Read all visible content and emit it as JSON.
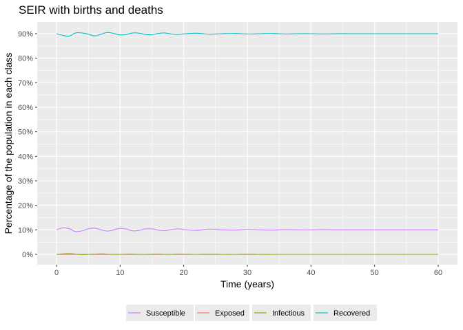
{
  "chart_data": {
    "type": "line",
    "title": "SEIR with births and deaths",
    "xlabel": "Time (years)",
    "ylabel": "Percentage of the population in each class",
    "xlim": [
      0,
      60
    ],
    "ylim": [
      0,
      0.9
    ],
    "x_ticks": [
      0,
      10,
      20,
      30,
      40,
      50,
      60
    ],
    "x_tick_labels": [
      "0",
      "10",
      "20",
      "30",
      "40",
      "50",
      "60"
    ],
    "y_ticks": [
      0,
      0.1,
      0.2,
      0.3,
      0.4,
      0.5,
      0.6,
      0.7,
      0.8,
      0.9
    ],
    "y_tick_labels": [
      "0%",
      "10%",
      "20%",
      "30%",
      "40%",
      "50%",
      "60%",
      "70%",
      "80%",
      "90%"
    ],
    "grid": true,
    "legend_position": "bottom",
    "x": [
      0,
      1,
      2,
      3,
      4,
      5,
      6,
      7,
      8,
      9,
      10,
      11,
      12,
      13,
      14,
      15,
      16,
      17,
      18,
      19,
      20,
      22,
      24,
      26,
      28,
      30,
      32,
      34,
      36,
      38,
      40,
      42,
      44,
      46,
      48,
      50,
      52,
      54,
      56,
      58,
      60
    ],
    "series": [
      {
        "name": "Susceptible",
        "color": "#C77CFF",
        "values": [
          0.1,
          0.108,
          0.105,
          0.093,
          0.096,
          0.104,
          0.107,
          0.1,
          0.095,
          0.1,
          0.106,
          0.103,
          0.096,
          0.098,
          0.104,
          0.104,
          0.099,
          0.097,
          0.101,
          0.104,
          0.101,
          0.098,
          0.103,
          0.1,
          0.099,
          0.102,
          0.1,
          0.099,
          0.101,
          0.1,
          0.1,
          0.101,
          0.1,
          0.1,
          0.1,
          0.1,
          0.1,
          0.1,
          0.1,
          0.1,
          0.1
        ]
      },
      {
        "name": "Exposed",
        "color": "#F8766D",
        "values": [
          0.0,
          0.0,
          0.0,
          0.0,
          0.0,
          0.0,
          0.0,
          0.0,
          0.0,
          0.0,
          0.0,
          0.0,
          0.0,
          0.0,
          0.0,
          0.0,
          0.0,
          0.0,
          0.0,
          0.0,
          0.0,
          0.0,
          0.0,
          0.0,
          0.0,
          0.0,
          0.0,
          0.0,
          0.0,
          0.0,
          0.0,
          0.0,
          0.0,
          0.0,
          0.0,
          0.0,
          0.0,
          0.0,
          0.0,
          0.0,
          0.0
        ]
      },
      {
        "name": "Infectious",
        "color": "#7CAE00",
        "values": [
          0.0,
          0.002,
          0.003,
          0.001,
          -0.001,
          0.0,
          0.001,
          0.002,
          0.001,
          0.0,
          0.0,
          0.001,
          0.001,
          0.0,
          0.0,
          0.001,
          0.001,
          0.0,
          0.0,
          0.001,
          0.001,
          0.0,
          0.001,
          0.0,
          0.0,
          0.001,
          0.0,
          0.0,
          0.0,
          0.0,
          0.0,
          0.0,
          0.0,
          0.0,
          0.0,
          0.0,
          0.0,
          0.0,
          0.0,
          0.0,
          0.0
        ]
      },
      {
        "name": "Recovered",
        "color": "#00BFC4",
        "values": [
          0.9,
          0.893,
          0.89,
          0.903,
          0.903,
          0.898,
          0.891,
          0.898,
          0.905,
          0.901,
          0.895,
          0.897,
          0.903,
          0.902,
          0.897,
          0.896,
          0.901,
          0.903,
          0.899,
          0.897,
          0.899,
          0.902,
          0.898,
          0.9,
          0.901,
          0.899,
          0.9,
          0.901,
          0.899,
          0.9,
          0.9,
          0.899,
          0.9,
          0.9,
          0.9,
          0.9,
          0.9,
          0.9,
          0.9,
          0.9,
          0.9
        ]
      }
    ]
  }
}
